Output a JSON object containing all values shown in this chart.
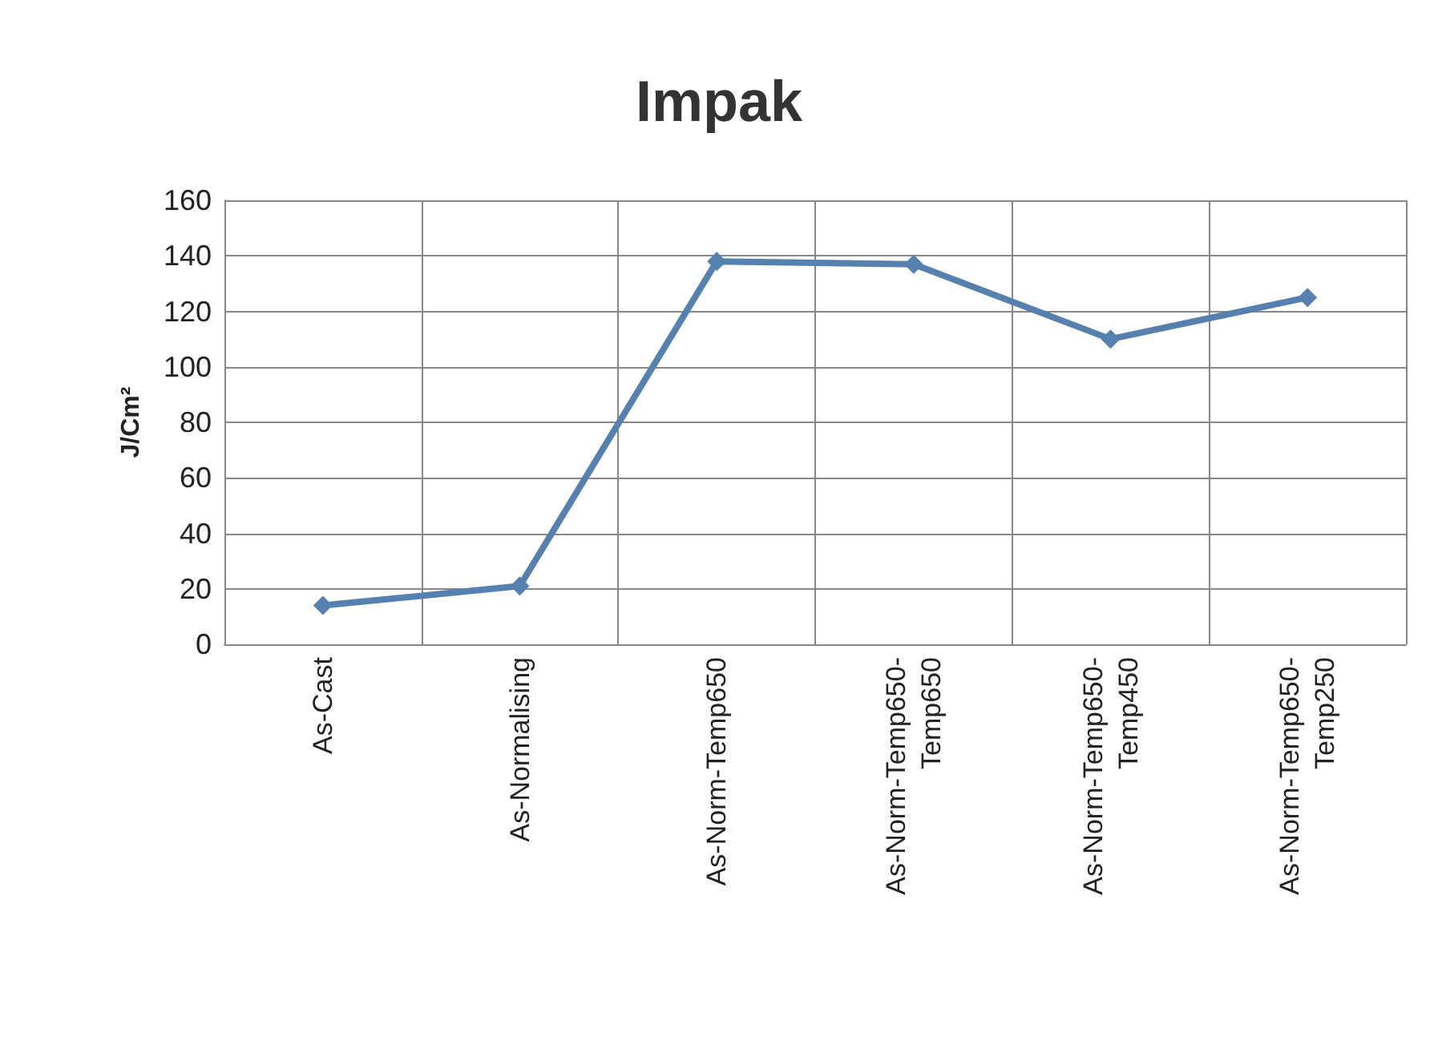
{
  "chart_data": {
    "type": "line",
    "title": "Impak",
    "ylabel": "J/Cm²",
    "categories": [
      "As-Cast",
      "As-Normalising",
      "As-Norm-Temp650",
      "As-Norm-Temp650-Temp650",
      "As-Norm-Temp650-Temp450",
      "As-Norm-Temp650-Temp250"
    ],
    "series": [
      {
        "color": "#5680ad",
        "values": [
          14,
          21,
          138,
          137,
          110,
          125
        ]
      }
    ],
    "ylim": [
      0,
      160
    ],
    "yticks": [
      0,
      20,
      40,
      60,
      80,
      100,
      120,
      140,
      160
    ],
    "grid": true,
    "marker": "diamond"
  }
}
